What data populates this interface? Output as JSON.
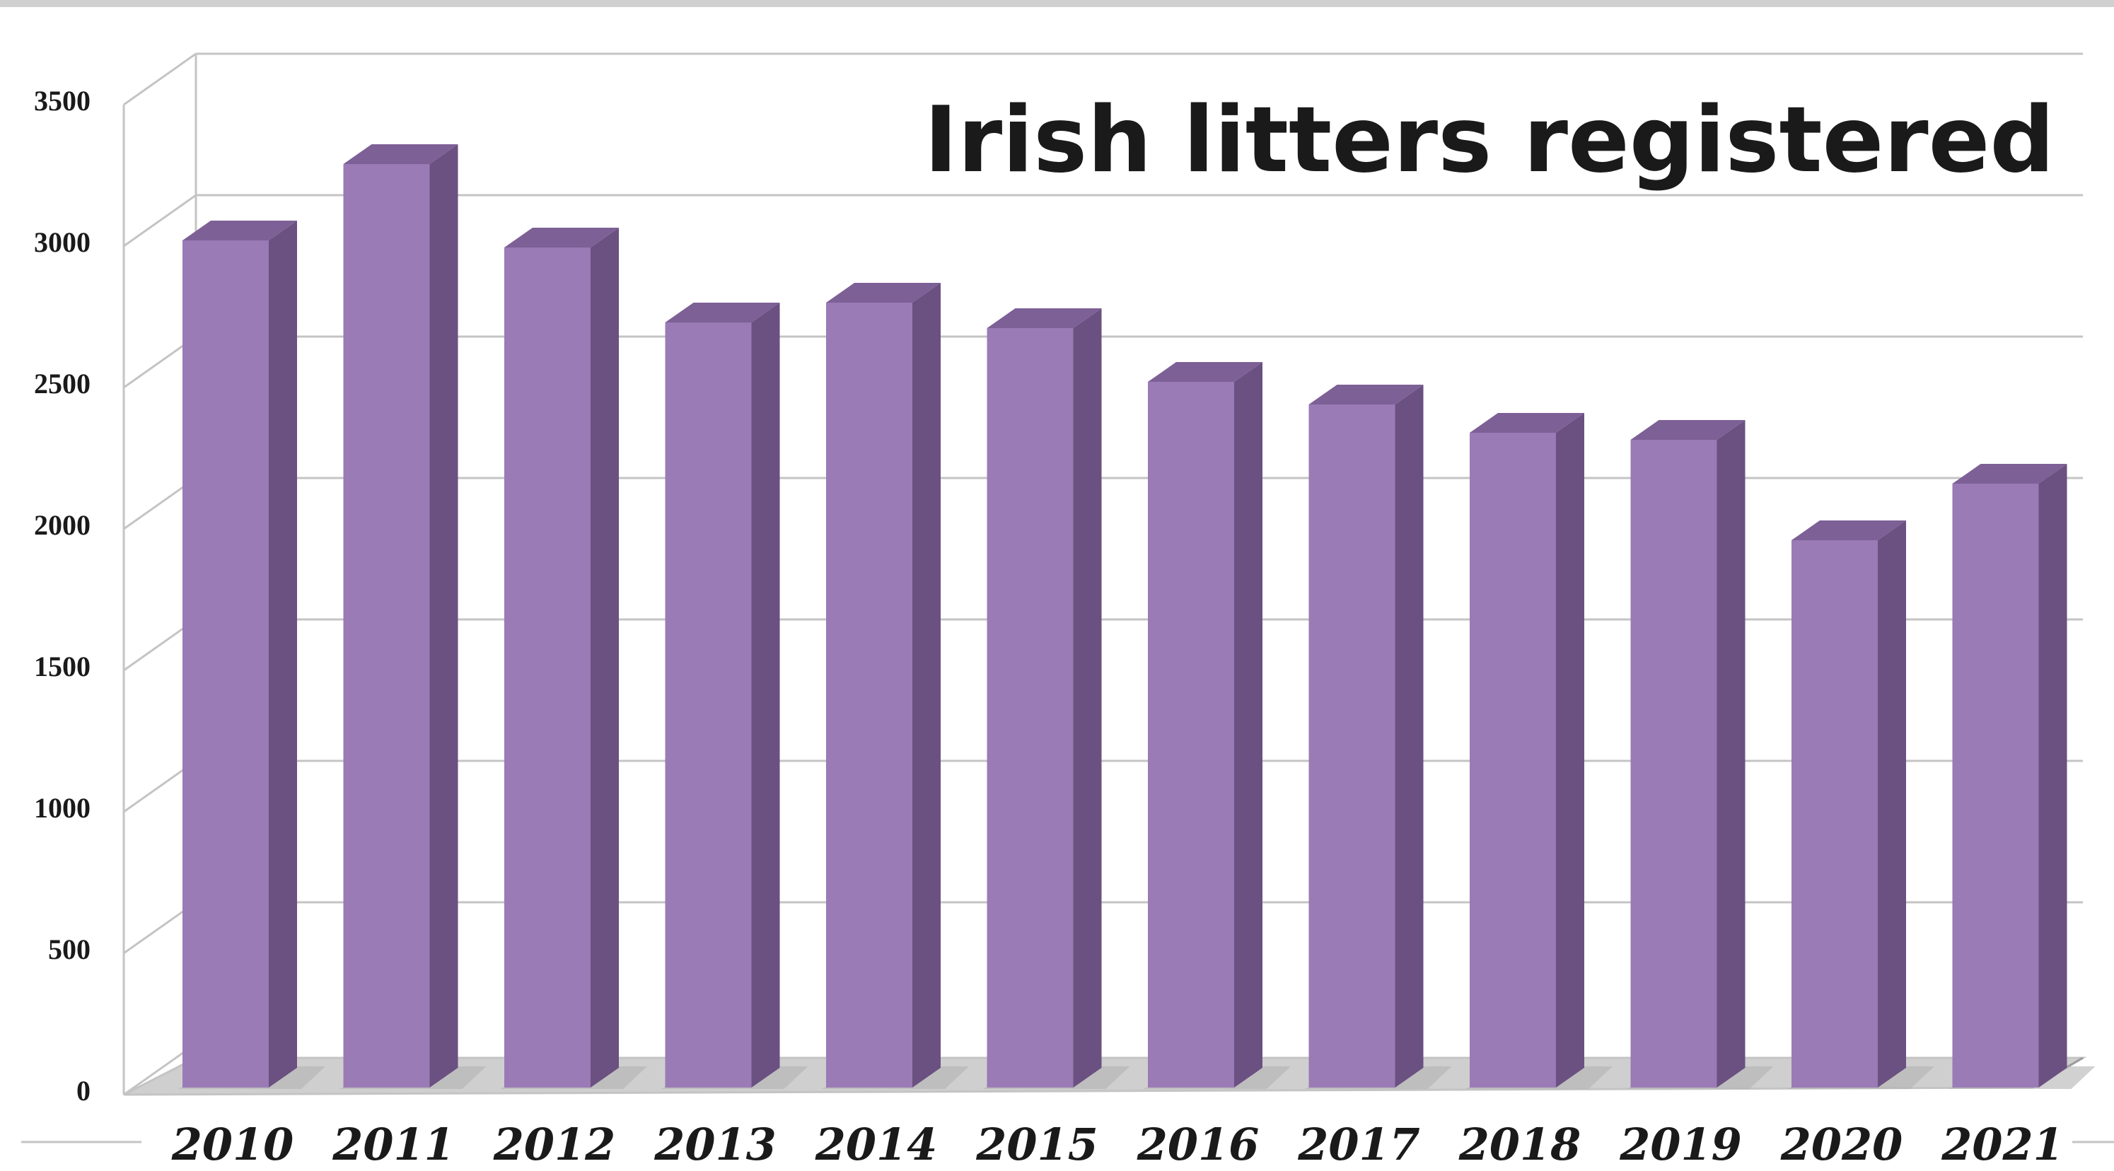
{
  "chart_data": {
    "type": "bar",
    "title": "Irish litters registered",
    "xlabel": "",
    "ylabel": "",
    "categories": [
      "2010",
      "2011",
      "2012",
      "2013",
      "2014",
      "2015",
      "2016",
      "2017",
      "2018",
      "2019",
      "2020",
      "2021"
    ],
    "values": [
      3020,
      3290,
      2995,
      2730,
      2800,
      2710,
      2520,
      2440,
      2340,
      2315,
      1960,
      2160
    ],
    "ylim": [
      0,
      3500
    ],
    "yticks": [
      "0",
      "500",
      "1000",
      "1500",
      "2000",
      "2500",
      "3000",
      "3500"
    ],
    "grid": true,
    "three_d": true,
    "colors": {
      "bar_front": "#9a7bb5",
      "bar_side": "#6a5181",
      "bar_top": "#7d6096",
      "grid": "#c4c4c4",
      "floor": "#cfcfcf",
      "floor_shadow": "#b3b3b3"
    }
  }
}
